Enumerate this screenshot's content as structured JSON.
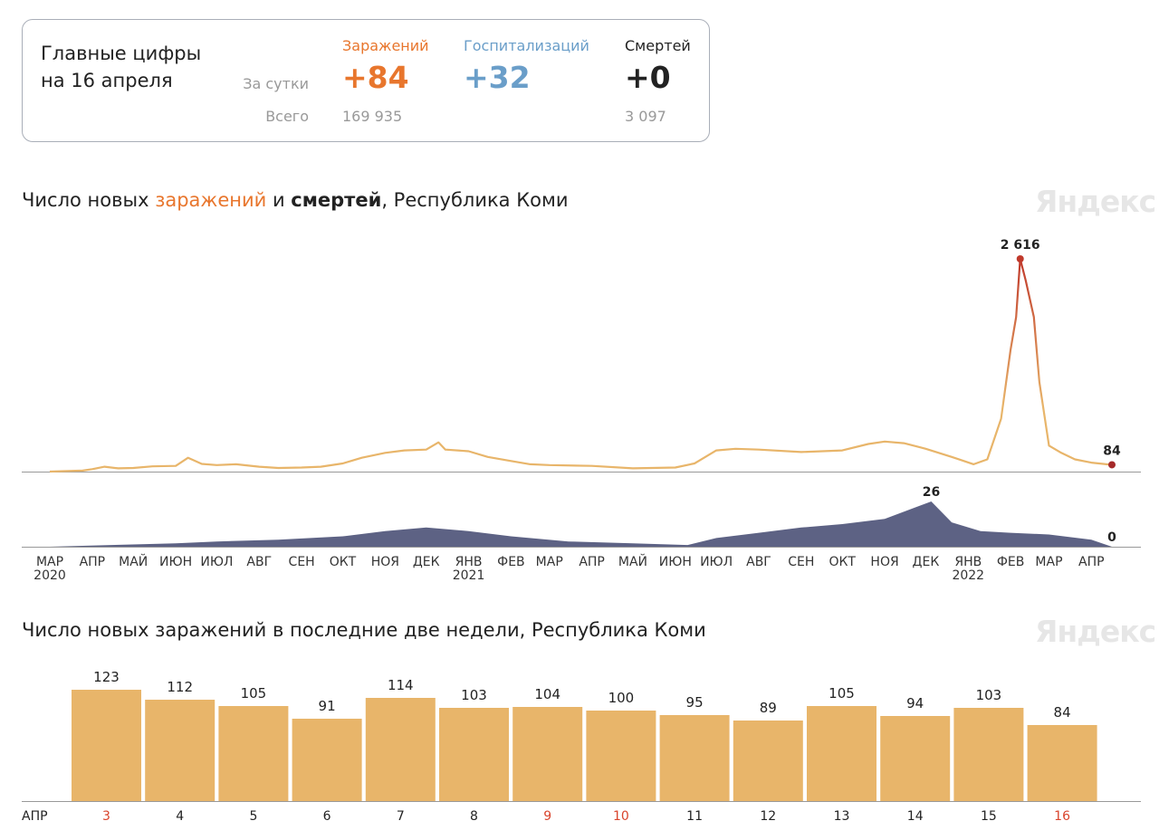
{
  "summary": {
    "title_line1": "Главные цифры",
    "title_line2": "на 16 апреля",
    "row_daily": "За сутки",
    "row_total": "Всего",
    "infections": {
      "label": "Заражений",
      "daily": "+84",
      "total": "169 935",
      "color": "#e8762d"
    },
    "hospitalizations": {
      "label": "Госпитализаций",
      "daily": "+32",
      "total": "",
      "color": "#6a9ec9"
    },
    "deaths": {
      "label": "Смертей",
      "daily": "+0",
      "total": "3 097",
      "color": "#222222"
    }
  },
  "chart1": {
    "title_part1": "Число новых ",
    "title_infections": "заражений",
    "title_part2": " и ",
    "title_deaths": "смертей",
    "title_part3": ", Республика Коми",
    "watermark": "Яндекс"
  },
  "chart2": {
    "title": "Число новых заражений в последние две недели, Республика Коми",
    "watermark": "Яндекс"
  },
  "colors": {
    "infections_line": "#e8b56a",
    "infections_peak": "#c0392b",
    "deaths_area": "#5d6284",
    "bar": "#e8b56a",
    "weekend_label": "#d9442c",
    "axis": "#999999"
  },
  "chart_data": [
    {
      "type": "line",
      "name": "infections",
      "x_range": [
        "2020-03-01",
        "2022-04-16"
      ],
      "ylim": [
        0,
        2616
      ],
      "points": [
        [
          "2020-03-01",
          0
        ],
        [
          "2020-03-25",
          12
        ],
        [
          "2020-04-01",
          30
        ],
        [
          "2020-04-10",
          60
        ],
        [
          "2020-04-20",
          40
        ],
        [
          "2020-05-01",
          45
        ],
        [
          "2020-05-15",
          65
        ],
        [
          "2020-06-01",
          70
        ],
        [
          "2020-06-10",
          170
        ],
        [
          "2020-06-20",
          95
        ],
        [
          "2020-07-01",
          80
        ],
        [
          "2020-07-15",
          90
        ],
        [
          "2020-08-01",
          60
        ],
        [
          "2020-08-15",
          45
        ],
        [
          "2020-09-01",
          50
        ],
        [
          "2020-09-15",
          60
        ],
        [
          "2020-10-01",
          100
        ],
        [
          "2020-10-15",
          170
        ],
        [
          "2020-11-01",
          230
        ],
        [
          "2020-11-15",
          260
        ],
        [
          "2020-12-01",
          270
        ],
        [
          "2020-12-10",
          360
        ],
        [
          "2020-12-15",
          270
        ],
        [
          "2021-01-01",
          250
        ],
        [
          "2021-01-15",
          180
        ],
        [
          "2021-02-01",
          130
        ],
        [
          "2021-02-15",
          90
        ],
        [
          "2021-03-01",
          80
        ],
        [
          "2021-04-01",
          70
        ],
        [
          "2021-05-01",
          40
        ],
        [
          "2021-06-01",
          50
        ],
        [
          "2021-06-15",
          100
        ],
        [
          "2021-07-01",
          260
        ],
        [
          "2021-07-15",
          280
        ],
        [
          "2021-08-01",
          270
        ],
        [
          "2021-09-01",
          240
        ],
        [
          "2021-10-01",
          260
        ],
        [
          "2021-10-20",
          340
        ],
        [
          "2021-11-01",
          370
        ],
        [
          "2021-11-15",
          350
        ],
        [
          "2021-12-01",
          280
        ],
        [
          "2021-12-20",
          180
        ],
        [
          "2022-01-05",
          90
        ],
        [
          "2022-01-15",
          150
        ],
        [
          "2022-01-25",
          650
        ],
        [
          "2022-02-01",
          1500
        ],
        [
          "2022-02-05",
          1900
        ],
        [
          "2022-02-08",
          2616
        ],
        [
          "2022-02-12",
          2350
        ],
        [
          "2022-02-18",
          1900
        ],
        [
          "2022-02-22",
          1100
        ],
        [
          "2022-03-01",
          320
        ],
        [
          "2022-03-10",
          230
        ],
        [
          "2022-03-20",
          150
        ],
        [
          "2022-04-01",
          110
        ],
        [
          "2022-04-16",
          84
        ]
      ],
      "labels": [
        {
          "date": "2022-02-08",
          "value": "2 616"
        },
        {
          "date": "2022-04-16",
          "value": "84"
        }
      ]
    },
    {
      "type": "area",
      "name": "deaths",
      "x_range": [
        "2020-03-01",
        "2022-04-16"
      ],
      "ylim": [
        0,
        26
      ],
      "points": [
        [
          "2020-03-01",
          0
        ],
        [
          "2020-04-15",
          1
        ],
        [
          "2020-06-01",
          2
        ],
        [
          "2020-07-01",
          3
        ],
        [
          "2020-08-15",
          4
        ],
        [
          "2020-10-01",
          6
        ],
        [
          "2020-11-01",
          9
        ],
        [
          "2020-12-01",
          11
        ],
        [
          "2021-01-01",
          9
        ],
        [
          "2021-02-01",
          6
        ],
        [
          "2021-03-15",
          3
        ],
        [
          "2021-05-01",
          2
        ],
        [
          "2021-06-10",
          1
        ],
        [
          "2021-07-01",
          5
        ],
        [
          "2021-08-01",
          8
        ],
        [
          "2021-09-01",
          11
        ],
        [
          "2021-10-01",
          13
        ],
        [
          "2021-11-01",
          16
        ],
        [
          "2021-12-05",
          26
        ],
        [
          "2021-12-20",
          14
        ],
        [
          "2022-01-10",
          9
        ],
        [
          "2022-02-01",
          8
        ],
        [
          "2022-03-01",
          7
        ],
        [
          "2022-04-01",
          4
        ],
        [
          "2022-04-16",
          0
        ]
      ],
      "labels": [
        {
          "date": "2021-12-05",
          "value": "26"
        },
        {
          "date": "2022-04-16",
          "value": "0"
        }
      ],
      "x_ticks": [
        {
          "month": "МАР",
          "year": "2020"
        },
        {
          "month": "АПР",
          "year": ""
        },
        {
          "month": "МАЙ",
          "year": ""
        },
        {
          "month": "ИЮН",
          "year": ""
        },
        {
          "month": "ИЮЛ",
          "year": ""
        },
        {
          "month": "АВГ",
          "year": ""
        },
        {
          "month": "СЕН",
          "year": ""
        },
        {
          "month": "ОКТ",
          "year": ""
        },
        {
          "month": "НОЯ",
          "year": ""
        },
        {
          "month": "ДЕК",
          "year": ""
        },
        {
          "month": "ЯНВ",
          "year": "2021"
        },
        {
          "month": "ФЕВ",
          "year": ""
        },
        {
          "month": "МАР",
          "year": ""
        },
        {
          "month": "АПР",
          "year": ""
        },
        {
          "month": "МАЙ",
          "year": ""
        },
        {
          "month": "ИЮН",
          "year": ""
        },
        {
          "month": "ИЮЛ",
          "year": ""
        },
        {
          "month": "АВГ",
          "year": ""
        },
        {
          "month": "СЕН",
          "year": ""
        },
        {
          "month": "ОКТ",
          "year": ""
        },
        {
          "month": "НОЯ",
          "year": ""
        },
        {
          "month": "ДЕК",
          "year": ""
        },
        {
          "month": "ЯНВ",
          "year": "2022"
        },
        {
          "month": "ФЕВ",
          "year": ""
        },
        {
          "month": "МАР",
          "year": ""
        },
        {
          "month": "АПР",
          "year": ""
        }
      ]
    },
    {
      "type": "bar",
      "x_prefix": "АПР",
      "categories": [
        "3",
        "4",
        "5",
        "6",
        "7",
        "8",
        "9",
        "10",
        "11",
        "12",
        "13",
        "14",
        "15",
        "16"
      ],
      "values": [
        123,
        112,
        105,
        91,
        114,
        103,
        104,
        100,
        95,
        89,
        105,
        94,
        103,
        84
      ],
      "weekend": [
        true,
        false,
        false,
        false,
        false,
        false,
        true,
        true,
        false,
        false,
        false,
        false,
        false,
        true
      ],
      "ylim": [
        0,
        160
      ]
    }
  ]
}
